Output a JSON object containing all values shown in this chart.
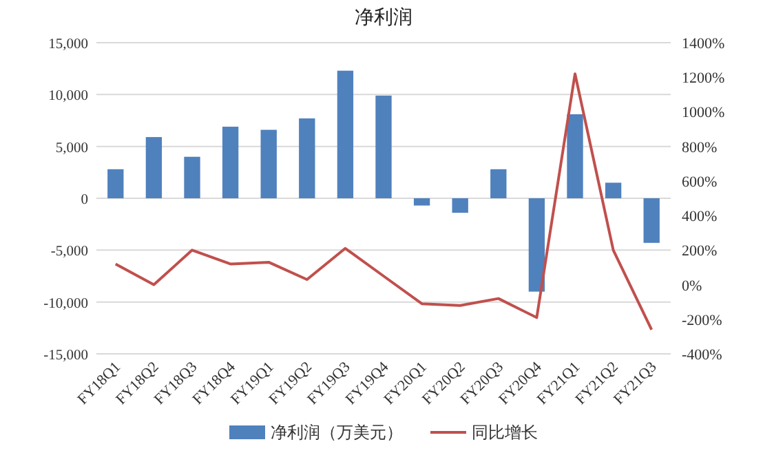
{
  "chart_data": {
    "type": "bar",
    "title": "净利润",
    "categories": [
      "FY18Q1",
      "FY18Q2",
      "FY18Q3",
      "FY18Q4",
      "FY19Q1",
      "FY19Q2",
      "FY19Q3",
      "FY19Q4",
      "FY20Q1",
      "FY20Q2",
      "FY20Q3",
      "FY20Q4",
      "FY21Q1",
      "FY21Q2",
      "FY21Q3"
    ],
    "series": [
      {
        "name": "净利润（万美元）",
        "color": "#4f81bd",
        "values": [
          2800,
          5900,
          4000,
          6900,
          6600,
          7700,
          12300,
          9900,
          -700,
          -1400,
          2800,
          -9000,
          8100,
          1500,
          -4300
        ]
      },
      {
        "name": "同比增长",
        "type": "line",
        "axis": "y2",
        "color": "#c0504d",
        "values": [
          120,
          0,
          200,
          120,
          130,
          30,
          210,
          50,
          -110,
          -120,
          -80,
          -190,
          1220,
          200,
          -260
        ]
      }
    ],
    "ylim": [
      -15000,
      15000
    ],
    "yticks": [
      {
        "value": -15000,
        "label": "-15,000"
      },
      {
        "value": -10000,
        "label": "-10,000"
      },
      {
        "value": -5000,
        "label": "-5,000"
      },
      0,
      {
        "value": 5000,
        "label": "5,000"
      },
      {
        "value": 10000,
        "label": "10,000"
      },
      {
        "value": 15000,
        "label": "15,000"
      }
    ],
    "y2lim": [
      -400,
      1400
    ],
    "y2ticks": [
      {
        "value": -400,
        "label": "-400%"
      },
      {
        "value": -200,
        "label": "-200%"
      },
      {
        "value": 0,
        "label": "0%"
      },
      {
        "value": 200,
        "label": "200%"
      },
      {
        "value": 400,
        "label": "400%"
      },
      {
        "value": 600,
        "label": "600%"
      },
      {
        "value": 800,
        "label": "800%"
      },
      {
        "value": 1000,
        "label": "1000%"
      },
      {
        "value": 1200,
        "label": "1200%"
      },
      {
        "value": 1400,
        "label": "1400%"
      }
    ],
    "grid": "y",
    "legend": "bottom"
  }
}
